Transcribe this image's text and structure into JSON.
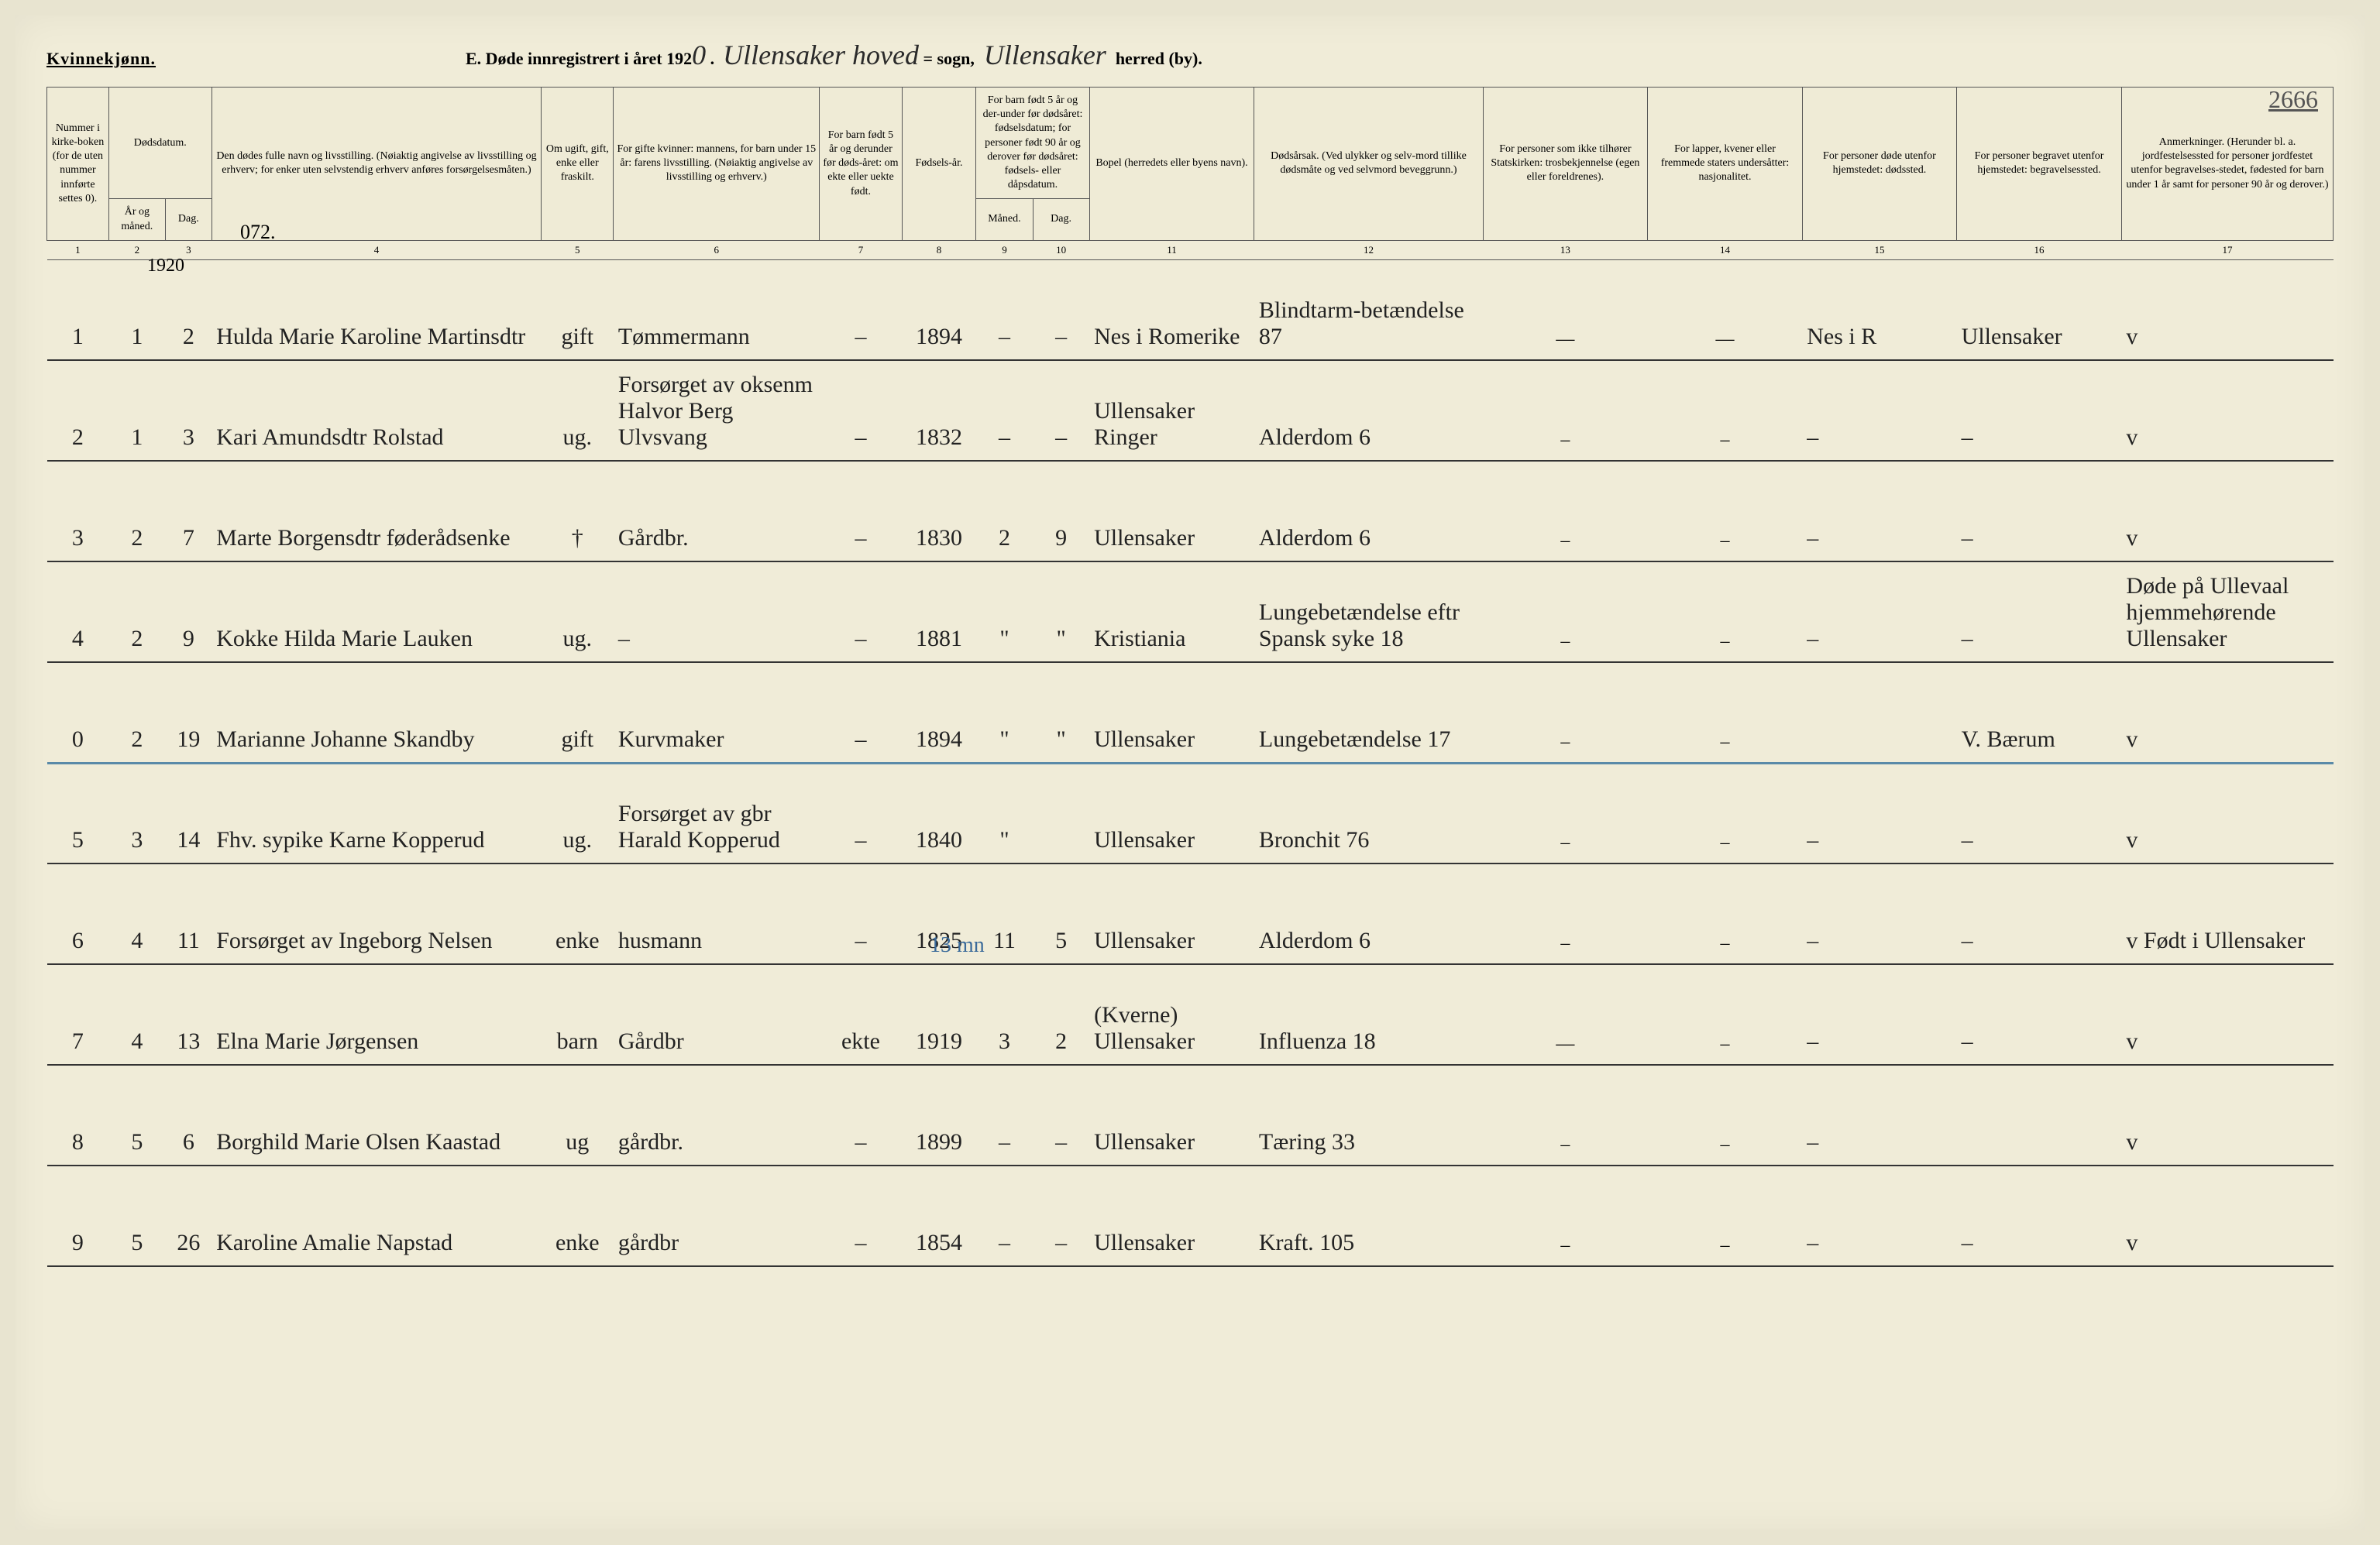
{
  "header": {
    "gender": "Kvinnekjønn.",
    "title_prefix": "E.  Døde innregistrert i året 192",
    "year_digit": "0",
    "parish_hw": "Ullensaker hoved",
    "sogn_label": "= sogn,",
    "district_hw": "Ullensaker",
    "herred_label": "herred (by).",
    "page_number": "2666",
    "note_072": "072.",
    "year_note": "1920"
  },
  "columns": {
    "c1": "Nummer i kirke-boken (for de uten nummer innførte settes 0).",
    "c2_3": "Dødsdatum.",
    "c2": "År og måned.",
    "c3": "Dag.",
    "c4": "Den dødes fulle navn og livsstilling. (Nøiaktig angivelse av livsstilling og erhverv; for enker uten selvstendig erhverv anføres forsørgelsesmåten.)",
    "c5": "Om ugift, gift, enke eller fraskilt.",
    "c6": "For gifte kvinner: mannens, for barn under 15 år: farens livsstilling. (Nøiaktig angivelse av livsstilling og erhverv.)",
    "c7": "For barn født 5 år og derunder før døds-året: om ekte eller uekte født.",
    "c8": "Fødsels-år.",
    "c9_10": "For barn født 5 år og der-under før dødsåret: fødselsdatum; for personer født 90 år og derover før dødsåret: fødsels- eller dåpsdatum.",
    "c9": "Måned.",
    "c10": "Dag.",
    "c11": "Bopel (herredets eller byens navn).",
    "c12": "Dødsårsak. (Ved ulykker og selv-mord tillike dødsmåte og ved selvmord beveggrunn.)",
    "c13": "For personer som ikke tilhører Statskirken: trosbekjennelse (egen eller foreldrenes).",
    "c14": "For lapper, kvener eller fremmede staters undersåtter: nasjonalitet.",
    "c15": "For personer døde utenfor hjemstedet: dødssted.",
    "c16": "For personer begravet utenfor hjemstedet: begravelsessted.",
    "c17": "Anmerkninger. (Herunder bl. a. jordfestelsessted for personer jordfestet utenfor begravelses-stedet, fødested for barn under 1 år samt for personer 90 år og derover.)"
  },
  "colnums": [
    "1",
    "2",
    "3",
    "4",
    "5",
    "6",
    "7",
    "8",
    "9",
    "10",
    "11",
    "12",
    "13",
    "14",
    "15",
    "16",
    "17"
  ],
  "blue_annotation": "13 mn",
  "rows": [
    {
      "n": "1",
      "mo": "1",
      "d": "2",
      "name": "Hulda Marie Karoline Martinsdtr",
      "ms": "gift",
      "occ": "Tømmermann",
      "c7": "–",
      "yr": "1894",
      "c9": "–",
      "c10": "–",
      "res": "Nes i Romerike",
      "cause": "Blindtarm-betændelse",
      "age": "87",
      "c13": "—",
      "c14": "—",
      "c15": "Nes i R",
      "c16": "Ullensaker",
      "c17": "v"
    },
    {
      "n": "2",
      "mo": "1",
      "d": "3",
      "name": "Kari Amundsdtr Rolstad",
      "ms": "ug.",
      "occ": "Forsørget av oksenm Halvor Berg Ulvsvang",
      "c7": "–",
      "yr": "1832",
      "c9": "–",
      "c10": "–",
      "res": "Ullensaker Ringer",
      "cause": "Alderdom",
      "age": "6",
      "c13": "–",
      "c14": "–",
      "c15": "–",
      "c16": "–",
      "c17": "v"
    },
    {
      "n": "3",
      "mo": "2",
      "d": "7",
      "name": "Marte Borgensdtr føderådsenke",
      "ms": "†",
      "occ": "Gårdbr.",
      "c7": "–",
      "yr": "1830",
      "c9": "2",
      "c10": "9",
      "res": "Ullensaker",
      "cause": "Alderdom",
      "age": "6",
      "c13": "–",
      "c14": "–",
      "c15": "–",
      "c16": "–",
      "c17": "v"
    },
    {
      "n": "4",
      "mo": "2",
      "d": "9",
      "name": "Kokke Hilda Marie Lauken",
      "ms": "ug.",
      "occ": "–",
      "c7": "–",
      "yr": "1881",
      "c9": "\"",
      "c10": "\"",
      "res": "Kristiania",
      "cause": "Lungebetændelse eftr Spansk syke",
      "age": "18",
      "c13": "–",
      "c14": "–",
      "c15": "–",
      "c16": "–",
      "c17": "Døde på Ullevaal hjemmehørende Ullensaker"
    },
    {
      "n": "0",
      "mo": "2",
      "d": "19",
      "name": "Marianne Johanne Skandby",
      "ms": "gift",
      "occ": "Kurvmaker",
      "c7": "–",
      "yr": "1894",
      "c9": "\"",
      "c10": "\"",
      "res": "Ullensaker",
      "cause": "Lungebetændelse",
      "age": "17",
      "c13": "–",
      "c14": "–",
      "c15": "",
      "c16": "V. Bærum",
      "c17": "v"
    },
    {
      "n": "5",
      "mo": "3",
      "d": "14",
      "name": "Fhv. sypike Karne Kopperud",
      "ms": "ug.",
      "occ": "Forsørget av gbr Harald Kopperud",
      "c7": "–",
      "yr": "1840",
      "c9": "\"",
      "c10": "",
      "res": "Ullensaker",
      "cause": "Bronchit",
      "age": "76",
      "c13": "–",
      "c14": "–",
      "c15": "–",
      "c16": "–",
      "c17": "v"
    },
    {
      "n": "6",
      "mo": "4",
      "d": "11",
      "name": "Forsørget av Ingeborg Nelsen",
      "ms": "enke",
      "occ": "husmann",
      "c7": "–",
      "yr": "1825",
      "c9": "11",
      "c10": "5",
      "res": "Ullensaker",
      "cause": "Alderdom",
      "age": "6",
      "c13": "–",
      "c14": "–",
      "c15": "–",
      "c16": "–",
      "c17": "v   Født i Ullensaker"
    },
    {
      "n": "7",
      "mo": "4",
      "d": "13",
      "name": "Elna Marie Jørgensen",
      "ms": "barn",
      "occ": "Gårdbr",
      "c7": "ekte",
      "yr": "1919",
      "c9": "3",
      "c10": "2",
      "res": "(Kverne) Ullensaker",
      "cause": "Influenza",
      "age": "18",
      "c13": "—",
      "c14": "–",
      "c15": "–",
      "c16": "–",
      "c17": "v"
    },
    {
      "n": "8",
      "mo": "5",
      "d": "6",
      "name": "Borghild Marie Olsen Kaastad",
      "ms": "ug",
      "occ": "gårdbr.",
      "c7": "–",
      "yr": "1899",
      "c9": "–",
      "c10": "–",
      "res": "Ullensaker",
      "cause": "Tæring",
      "age": "33",
      "c13": "–",
      "c14": "–",
      "c15": "–",
      "c16": "",
      "c17": "v"
    },
    {
      "n": "9",
      "mo": "5",
      "d": "26",
      "name": "Karoline Amalie Napstad",
      "ms": "enke",
      "occ": "gårdbr",
      "c7": "–",
      "yr": "1854",
      "c9": "–",
      "c10": "–",
      "res": "Ullensaker",
      "cause": "Kraft.",
      "age": "105",
      "c13": "–",
      "c14": "–",
      "c15": "–",
      "c16": "–",
      "c17": "v"
    }
  ]
}
